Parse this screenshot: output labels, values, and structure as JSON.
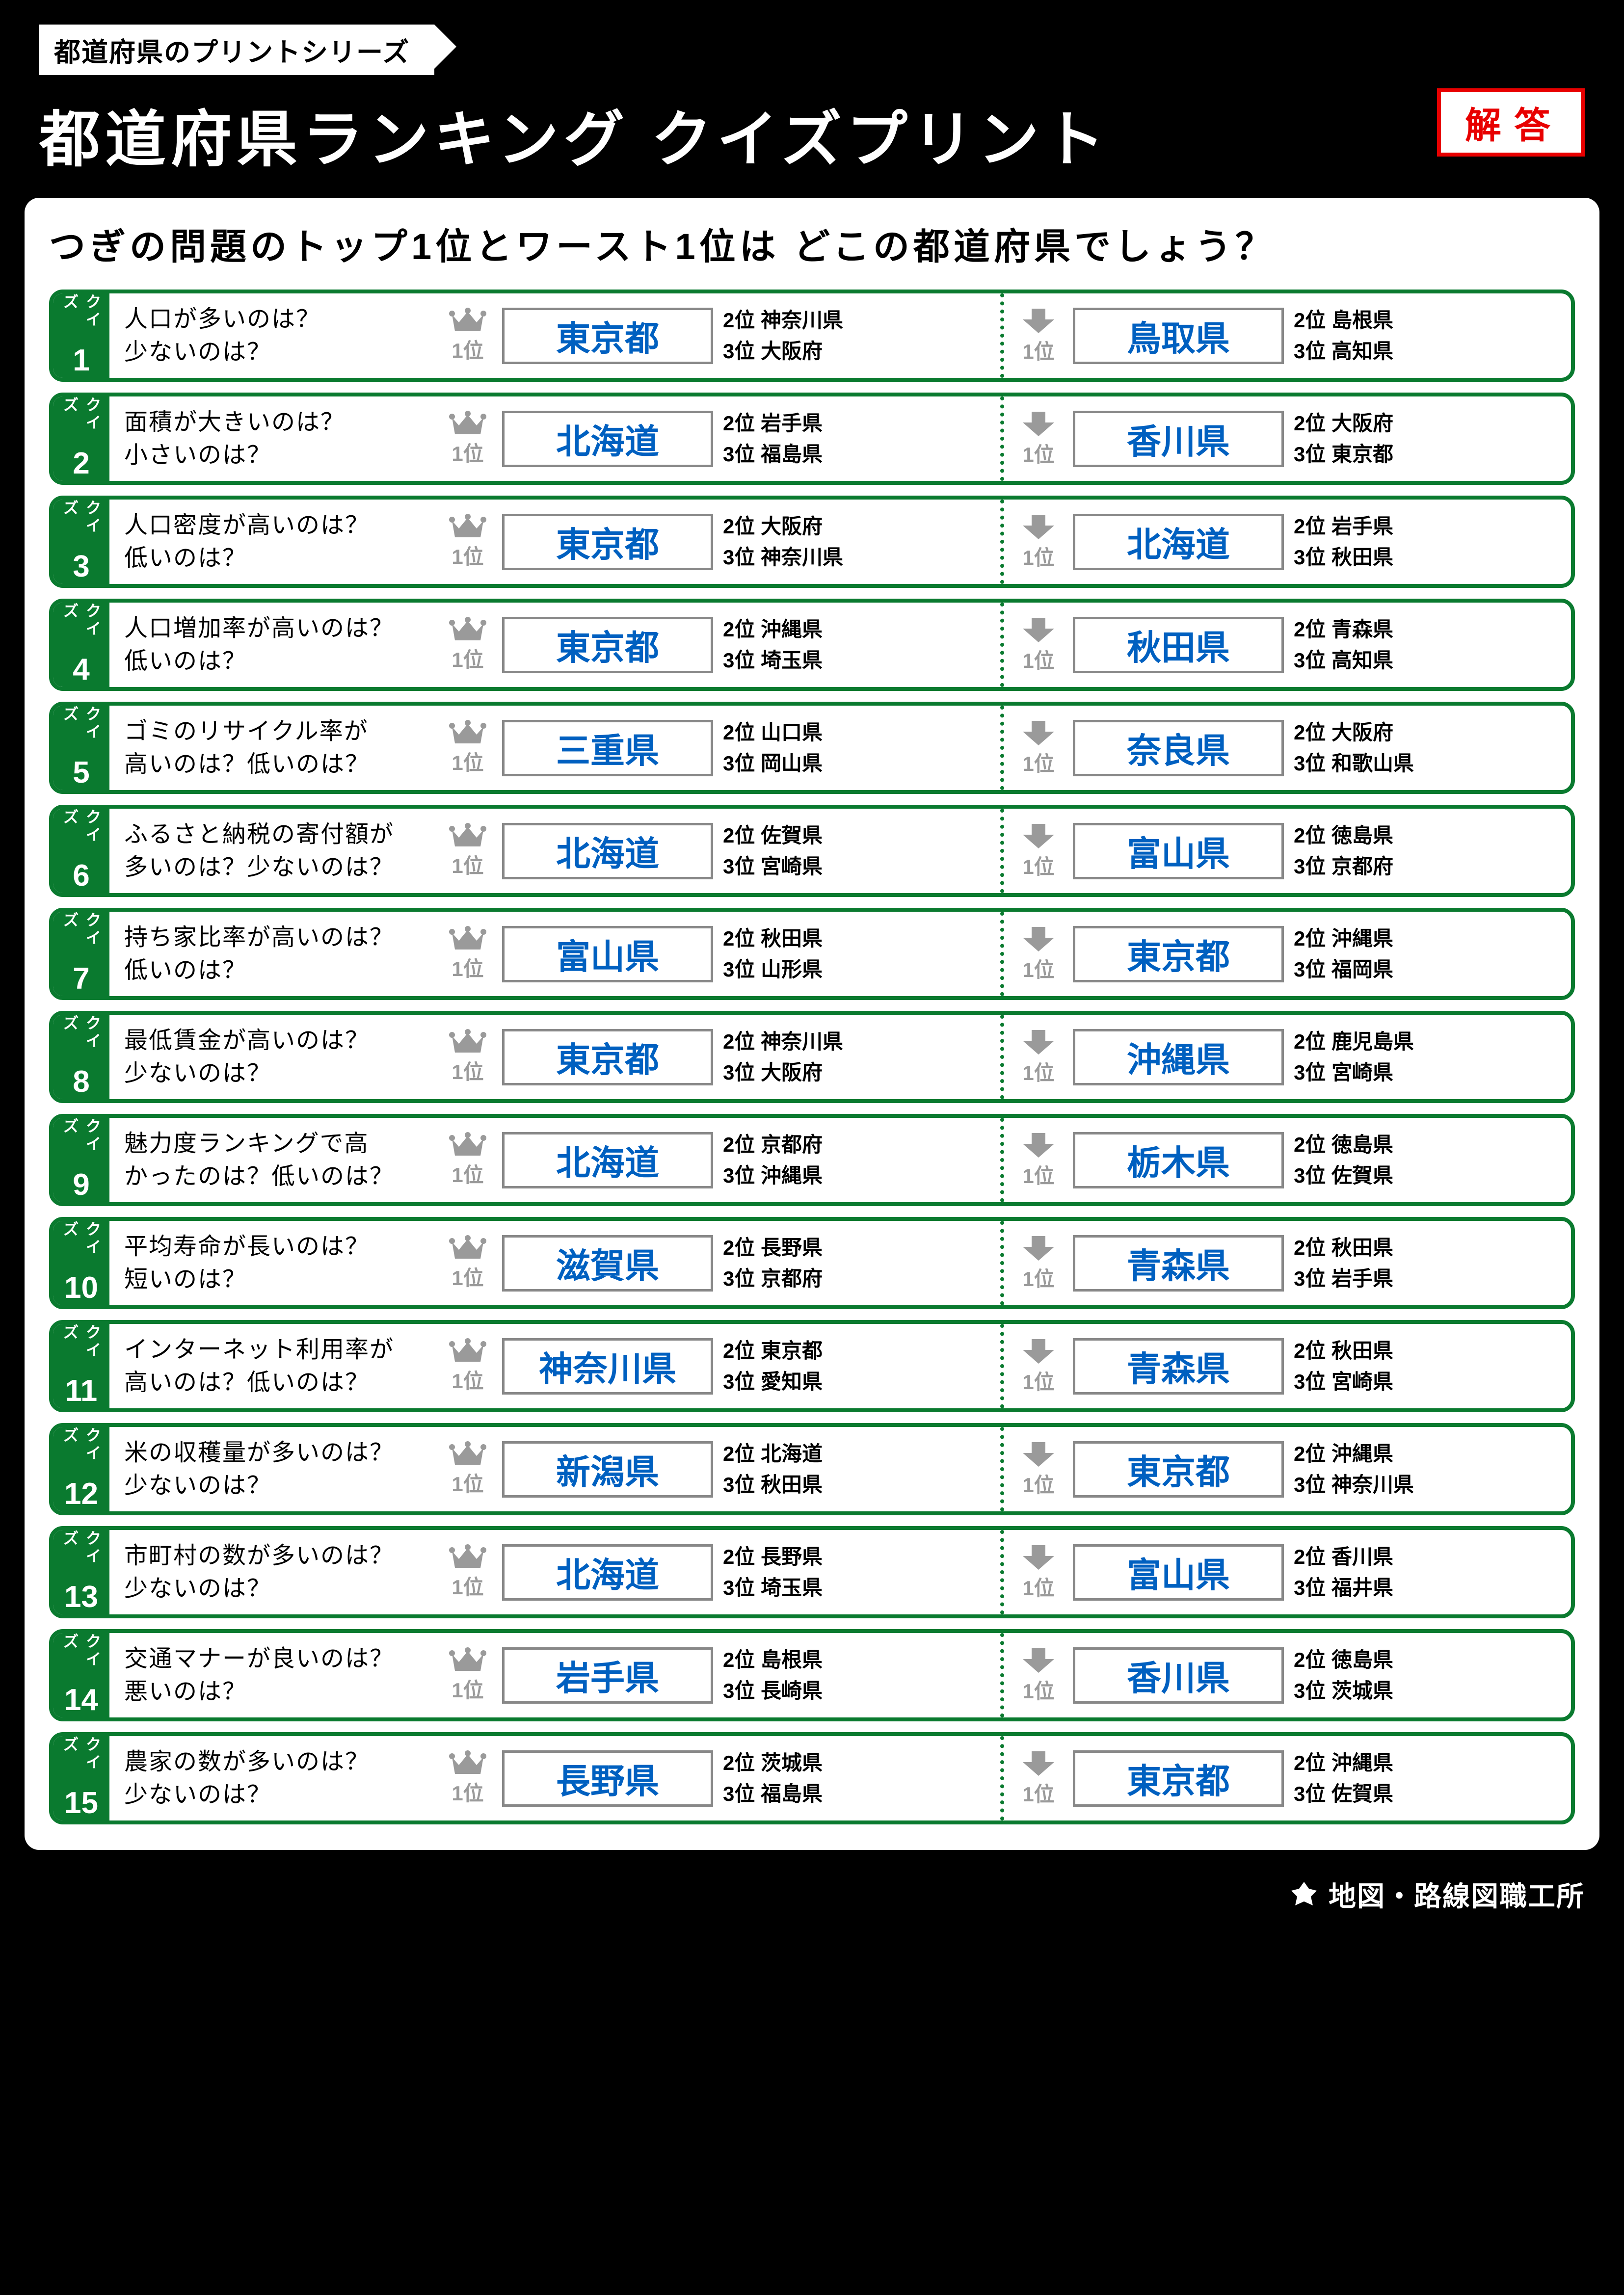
{
  "header": {
    "series_label": "都道府県のプリントシリーズ",
    "main_title": "都道府県ランキング クイズプリント",
    "answer_badge": "解答"
  },
  "subtitle": "つぎの問題のトップ1位とワースト1位は どこの都道府県でしょう？",
  "quiz_label": "クイズ",
  "rank1_label": "1位",
  "rank2_prefix": "2位 ",
  "rank3_prefix": "3位 ",
  "colors": {
    "page_bg": "#000000",
    "content_bg": "#ffffff",
    "row_border": "#0a7a2f",
    "quiz_tab_bg": "#0a7a2f",
    "answer_text": "#0060c0",
    "answer_border": "#888888",
    "rank_icon": "#9a9a9a",
    "badge_red": "#e80000"
  },
  "quizzes": [
    {
      "n": "1",
      "q": "人口が多いのは？\n少ないのは？",
      "top": {
        "a": "東京都",
        "r2": "神奈川県",
        "r3": "大阪府"
      },
      "worst": {
        "a": "鳥取県",
        "r2": "島根県",
        "r3": "高知県"
      }
    },
    {
      "n": "2",
      "q": "面積が大きいのは？\n小さいのは？",
      "top": {
        "a": "北海道",
        "r2": "岩手県",
        "r3": "福島県"
      },
      "worst": {
        "a": "香川県",
        "r2": "大阪府",
        "r3": "東京都"
      }
    },
    {
      "n": "3",
      "q": "人口密度が高いのは？\n低いのは？",
      "top": {
        "a": "東京都",
        "r2": "大阪府",
        "r3": "神奈川県"
      },
      "worst": {
        "a": "北海道",
        "r2": "岩手県",
        "r3": "秋田県"
      }
    },
    {
      "n": "4",
      "q": "人口増加率が高いのは？\n低いのは？",
      "top": {
        "a": "東京都",
        "r2": "沖縄県",
        "r3": "埼玉県"
      },
      "worst": {
        "a": "秋田県",
        "r2": "青森県",
        "r3": "高知県"
      }
    },
    {
      "n": "5",
      "q": "ゴミのリサイクル率が\n高いのは？低いのは？",
      "top": {
        "a": "三重県",
        "r2": "山口県",
        "r3": "岡山県"
      },
      "worst": {
        "a": "奈良県",
        "r2": "大阪府",
        "r3": "和歌山県"
      }
    },
    {
      "n": "6",
      "q": "ふるさと納税の寄付額が\n多いのは？少ないのは？",
      "top": {
        "a": "北海道",
        "r2": "佐賀県",
        "r3": "宮崎県"
      },
      "worst": {
        "a": "富山県",
        "r2": "徳島県",
        "r3": "京都府"
      }
    },
    {
      "n": "7",
      "q": "持ち家比率が高いのは？\n低いのは？",
      "top": {
        "a": "富山県",
        "r2": "秋田県",
        "r3": "山形県"
      },
      "worst": {
        "a": "東京都",
        "r2": "沖縄県",
        "r3": "福岡県"
      }
    },
    {
      "n": "8",
      "q": "最低賃金が高いのは？\n少ないのは？",
      "top": {
        "a": "東京都",
        "r2": "神奈川県",
        "r3": "大阪府"
      },
      "worst": {
        "a": "沖縄県",
        "r2": "鹿児島県",
        "r3": "宮崎県"
      }
    },
    {
      "n": "9",
      "q": "魅力度ランキングで高\nかったのは？低いのは？",
      "top": {
        "a": "北海道",
        "r2": "京都府",
        "r3": "沖縄県"
      },
      "worst": {
        "a": "栃木県",
        "r2": "徳島県",
        "r3": "佐賀県"
      }
    },
    {
      "n": "10",
      "q": "平均寿命が長いのは？\n短いのは？",
      "top": {
        "a": "滋賀県",
        "r2": "長野県",
        "r3": "京都府"
      },
      "worst": {
        "a": "青森県",
        "r2": "秋田県",
        "r3": "岩手県"
      }
    },
    {
      "n": "11",
      "q": "インターネット利用率が\n高いのは？低いのは？",
      "top": {
        "a": "神奈川県",
        "r2": "東京都",
        "r3": "愛知県"
      },
      "worst": {
        "a": "青森県",
        "r2": "秋田県",
        "r3": "宮崎県"
      }
    },
    {
      "n": "12",
      "q": "米の収穫量が多いのは？\n少ないのは？",
      "top": {
        "a": "新潟県",
        "r2": "北海道",
        "r3": "秋田県"
      },
      "worst": {
        "a": "東京都",
        "r2": "沖縄県",
        "r3": "神奈川県"
      }
    },
    {
      "n": "13",
      "q": "市町村の数が多いのは？\n少ないのは？",
      "top": {
        "a": "北海道",
        "r2": "長野県",
        "r3": "埼玉県"
      },
      "worst": {
        "a": "富山県",
        "r2": "香川県",
        "r3": "福井県"
      }
    },
    {
      "n": "14",
      "q": "交通マナーが良いのは？\n悪いのは？",
      "top": {
        "a": "岩手県",
        "r2": "島根県",
        "r3": "長崎県"
      },
      "worst": {
        "a": "香川県",
        "r2": "徳島県",
        "r3": "茨城県"
      }
    },
    {
      "n": "15",
      "q": "農家の数が多いのは？\n少ないのは？",
      "top": {
        "a": "長野県",
        "r2": "茨城県",
        "r3": "福島県"
      },
      "worst": {
        "a": "東京都",
        "r2": "沖縄県",
        "r3": "佐賀県"
      }
    }
  ],
  "footer": "地図・路線図職工所"
}
